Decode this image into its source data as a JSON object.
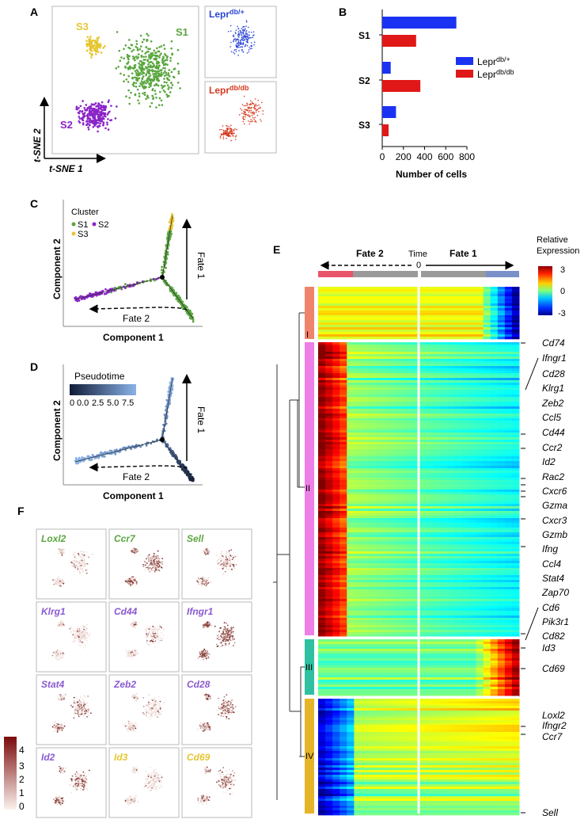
{
  "panels": {
    "A": {
      "letter": "A",
      "clusters": [
        {
          "label": "S1",
          "color": "#5aa63f"
        },
        {
          "label": "S2",
          "color": "#8a24c7"
        },
        {
          "label": "S3",
          "color": "#e6c631"
        }
      ],
      "xaxis": "t-SNE 1",
      "yaxis": "t-SNE 2",
      "small_titles": [
        {
          "base": "Lepr",
          "sup": "db/+",
          "color": "#2a46d6"
        },
        {
          "base": "Lepr",
          "sup": "db/db",
          "color": "#d63a1e"
        }
      ]
    },
    "B": {
      "letter": "B"
    },
    "C": {
      "letter": "C",
      "legend_title": "Cluster",
      "legend_items": [
        "S1",
        "S2",
        "S3"
      ],
      "fate1": "Fate 1",
      "fate2": "Fate 2",
      "xaxis": "Component 1",
      "yaxis": "Component 2"
    },
    "D": {
      "letter": "D",
      "legend_title": "Pseudotime",
      "ticks": [
        "0",
        "0.0",
        "2.5",
        "5.0",
        "7.5"
      ],
      "fate1": "Fate 1",
      "fate2": "Fate 2",
      "xaxis": "Component 1",
      "yaxis": "Component 2"
    },
    "E": {
      "letter": "E",
      "fate2": "Fate 2",
      "fate1": "Fate 1",
      "time_label": "Time",
      "time_zero": "0",
      "legend_title_1": "Relative",
      "legend_title_2": "Expression",
      "legend_ticks": [
        "3",
        "0",
        "-3"
      ],
      "cluster_labels": [
        "I",
        "II",
        "III",
        "IV"
      ],
      "genes": [
        "Cd74",
        "Ifngr1",
        "Cd28",
        "Klrg1",
        "Zeb2",
        "Ccl5",
        "Cd44",
        "Ccr2",
        "Id2",
        "Rac2",
        "Cxcr6",
        "Gzma",
        "Cxcr3",
        "Gzmb",
        "Ifng",
        "Ccl4",
        "Stat4",
        "Zap70",
        "Cd6",
        "Pik3r1",
        "Cd82",
        "Id3",
        "Cd69",
        "Loxl2",
        "Ifngr2",
        "Ccr7",
        "Sell"
      ]
    },
    "F": {
      "letter": "F",
      "legend_ticks": [
        "4",
        "3",
        "2",
        "1",
        "0"
      ],
      "tiles": [
        {
          "gene": "Loxl2",
          "color": "#5aa63f",
          "density": 0.15
        },
        {
          "gene": "Ccr7",
          "color": "#5aa63f",
          "density": 0.7
        },
        {
          "gene": "Sell",
          "color": "#5aa63f",
          "density": 0.4
        },
        {
          "gene": "Klrg1",
          "color": "#8a5ad0",
          "density": 0.15
        },
        {
          "gene": "Cd44",
          "color": "#8a5ad0",
          "density": 0.2
        },
        {
          "gene": "Ifngr1",
          "color": "#8a5ad0",
          "density": 0.95
        },
        {
          "gene": "Stat4",
          "color": "#8a5ad0",
          "density": 0.45
        },
        {
          "gene": "Zeb2",
          "color": "#8a5ad0",
          "density": 0.2
        },
        {
          "gene": "Cd28",
          "color": "#8a5ad0",
          "density": 0.55
        },
        {
          "gene": "Id2",
          "color": "#8a5ad0",
          "density": 0.5
        },
        {
          "gene": "Id3",
          "color": "#e6c631",
          "density": 0.1
        },
        {
          "gene": "Cd69",
          "color": "#e6c631",
          "density": 0.4
        }
      ]
    }
  },
  "chart_data": {
    "type": "bar",
    "orientation": "horizontal",
    "categories": [
      "S1",
      "S2",
      "S3"
    ],
    "series": [
      {
        "name": "Lepr db/+",
        "color": "#1a33f2",
        "values": [
          700,
          80,
          130
        ]
      },
      {
        "name": "Lepr db/db",
        "color": "#e01818",
        "values": [
          320,
          360,
          60
        ]
      }
    ],
    "xlim": [
      0,
      800
    ],
    "xticks": [
      "0",
      "200",
      "400",
      "600",
      "800"
    ],
    "legend": [
      {
        "base": "Lepr",
        "sup": "db/+"
      },
      {
        "base": "Lepr",
        "sup": "db/db"
      }
    ],
    "xlabel": "Number of cells",
    "ylabel": ""
  }
}
